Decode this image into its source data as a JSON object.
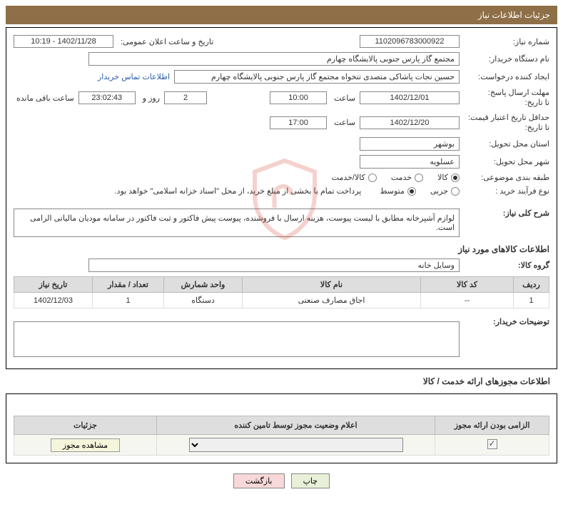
{
  "header": {
    "title": "جزئیات اطلاعات نیاز"
  },
  "fields": {
    "need_no_label": "شماره نیاز:",
    "need_no": "1102096783000922",
    "ann_date_label": "تاریخ و ساعت اعلان عمومی:",
    "ann_date": "1402/11/28 - 10:19",
    "buyer_org_label": "نام دستگاه خریدار:",
    "buyer_org": "مجتمع گاز پارس جنوبی پالایشگاه چهارم",
    "requester_label": "ایجاد کننده درخواست:",
    "requester": "حسین نجات پاشاکی متصدی تنخواه مجتمع گاز پارس جنوبی پالایشگاه چهارم",
    "contact_link": "اطلاعات تماس خریدار",
    "deadline_label1": "مهلت ارسال پاسخ:",
    "deadline_label2": "تا تاریخ:",
    "deadline_date": "1402/12/01",
    "time_label": "ساعت",
    "deadline_time": "10:00",
    "days_count": "2",
    "days_and": "روز و",
    "countdown": "23:02:43",
    "remaining_label": "ساعت باقی مانده",
    "validity_label1": "حداقل تاریخ اعتبار قیمت:",
    "validity_label2": "تا تاریخ:",
    "validity_date": "1402/12/20",
    "validity_time": "17:00",
    "province_label": "استان محل تحویل:",
    "province": "بوشهر",
    "city_label": "شهر محل تحویل:",
    "city": "عسلویه",
    "category_label": "طبقه بندی موضوعی:",
    "cat_goods": "کالا",
    "cat_service": "خدمت",
    "cat_goods_service": "کالا/خدمت",
    "purchase_type_label": "نوع فرآیند خرید :",
    "pt_small": "جزیی",
    "pt_medium": "متوسط",
    "pt_note": "پرداخت تمام یا بخشی از مبلغ خرید، از محل \"اسناد خزانه اسلامی\" خواهد بود.",
    "general_desc_label": "شرح کلی نیاز:",
    "general_desc": "لوازم آشپزخانه مطابق با لیست پیوست، هزینه ارسال با فروشنده، پیوست پیش فاکتور و ثبت فاکتور در سامانه مودیان مالیاتی الزامی است.",
    "goods_section": "اطلاعات کالاهای مورد نیاز",
    "group_label": "گروه کالا:",
    "group": "وسایل خانه"
  },
  "goods_table": {
    "headers": {
      "row": "ردیف",
      "code": "کد کالا",
      "name": "نام کالا",
      "unit": "واحد شمارش",
      "qty": "تعداد / مقدار",
      "need_date": "تاریخ نیاز"
    },
    "rows": [
      {
        "row": "1",
        "code": "--",
        "name": "اجاق مصارف صنعتی",
        "unit": "دستگاه",
        "qty": "1",
        "need_date": "1402/12/03"
      }
    ]
  },
  "buyer_notes_label": "توضیحات خریدار:",
  "license_section": "اطلاعات مجوزهای ارائه خدمت / کالا",
  "license_table": {
    "headers": {
      "mandatory": "الزامی بودن ارائه مجوز",
      "status": "اعلام وضعیت مجوز توسط تامین کننده",
      "details": "جزئیات"
    },
    "view_btn": "مشاهده مجوز"
  },
  "footer": {
    "print": "چاپ",
    "back": "بازگشت"
  },
  "colors": {
    "header_bg": "#8f6f47",
    "th_bg": "#dedede"
  }
}
